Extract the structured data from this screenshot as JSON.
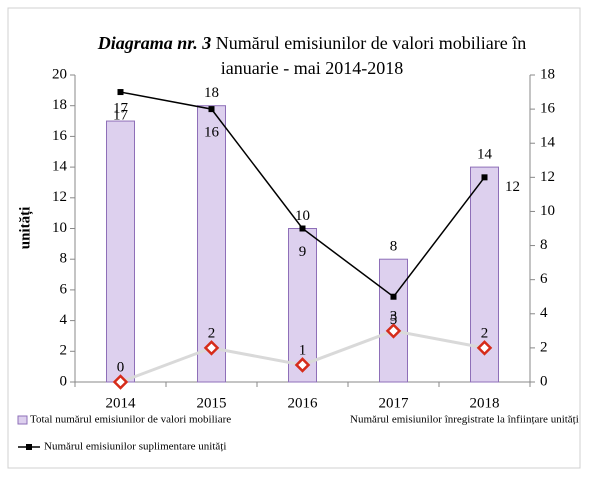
{
  "chart_data": {
    "type": "bar-line",
    "title_prefix": "Diagrama nr. 3",
    "title": "Numărul emisiunilor de valori mobiliare în ianuarie - mai 2014-2018",
    "y_label": "unități",
    "categories": [
      "2014",
      "2015",
      "2016",
      "2017",
      "2018"
    ],
    "series": [
      {
        "name": "Total numărul emisiunilor de valori mobiliare",
        "type": "bar",
        "color": "#ddd0ee",
        "values": [
          17,
          18,
          10,
          8,
          14
        ]
      },
      {
        "name": "Numărul emisiunilor înregistrate la înființare unități",
        "type": "line",
        "axis": "y2",
        "color": "#d62c1a",
        "values": [
          0,
          2,
          1,
          3,
          2
        ]
      },
      {
        "name": "Numărul emisiunilor suplimentare unități",
        "type": "line",
        "axis": "y2",
        "color": "#000000",
        "values": [
          17,
          16,
          9,
          5,
          12
        ]
      }
    ],
    "ylim": [
      0,
      20
    ],
    "yticks": [
      0,
      2,
      4,
      6,
      8,
      10,
      12,
      14,
      16,
      18,
      20
    ],
    "y2lim": [
      0,
      18
    ],
    "y2ticks": [
      0,
      2,
      4,
      6,
      8,
      10,
      12,
      14,
      16,
      18
    ]
  }
}
